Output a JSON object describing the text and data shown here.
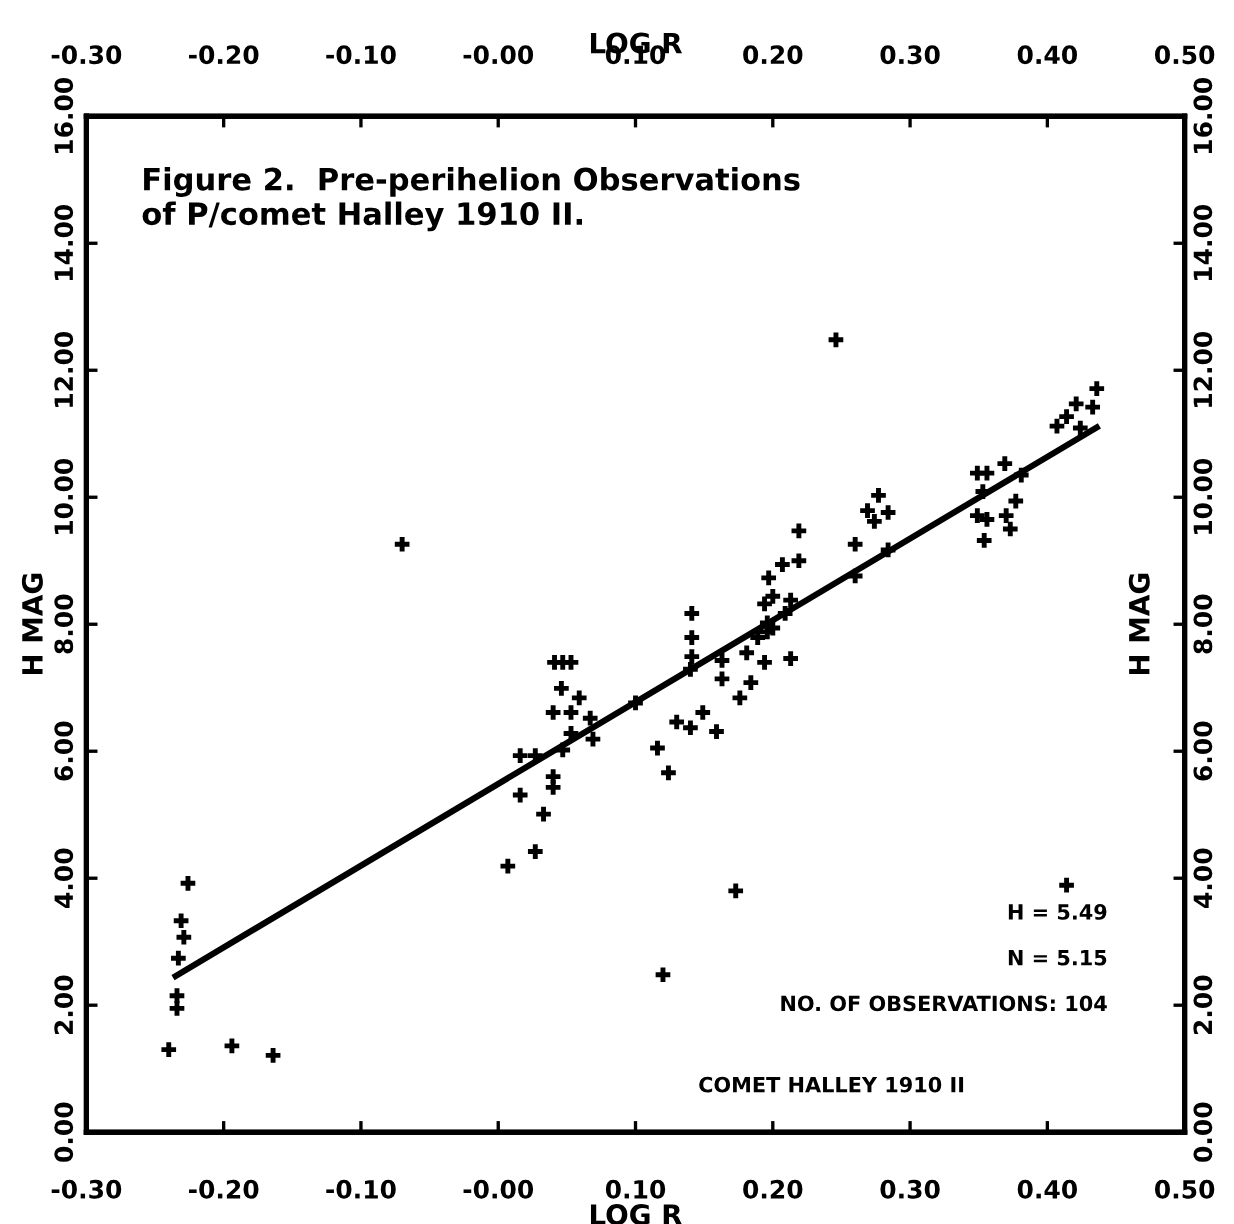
{
  "chart_data": {
    "type": "scatter",
    "title": "Figure 2.  Pre-perihelion Observations\nof P/comet Halley 1910 II.",
    "xlabel": "LOG R",
    "x2label": "LOG R",
    "ylabel": "H MAG",
    "y2label": "H MAG",
    "xlim": [
      -0.3,
      0.5
    ],
    "x2lim": [
      -0.3,
      0.5
    ],
    "xticks": [
      {
        "value": -0.3,
        "label": "-0.30"
      },
      {
        "value": -0.2,
        "label": "-0.20"
      },
      {
        "value": -0.1,
        "label": "-0.10"
      },
      {
        "value": 0,
        "label": "-0.00"
      },
      {
        "value": 0.1,
        "label": "0.10"
      },
      {
        "value": 0.2,
        "label": "0.20"
      },
      {
        "value": 0.3,
        "label": "0.30"
      },
      {
        "value": 0.4,
        "label": "0.40"
      },
      {
        "value": 0.5,
        "label": "0.50"
      }
    ],
    "x2ticks": [
      {
        "value": -0.3,
        "label": "-0.30"
      },
      {
        "value": -0.2,
        "label": "-0.20"
      },
      {
        "value": -0.1,
        "label": "-0.10"
      },
      {
        "value": 0,
        "label": "-0.00"
      },
      {
        "value": 0.1,
        "label": "0.10"
      },
      {
        "value": 0.2,
        "label": "0.20"
      },
      {
        "value": 0.3,
        "label": "0.30"
      },
      {
        "value": 0.4,
        "label": "0.40"
      },
      {
        "value": 0.5,
        "label": "0.50"
      }
    ],
    "ylim": [
      0,
      16
    ],
    "y2lim": [
      0,
      16
    ],
    "yticks": [
      {
        "value": 0,
        "label": "0.00"
      },
      {
        "value": 2,
        "label": "2.00"
      },
      {
        "value": 4,
        "label": "4.00"
      },
      {
        "value": 6,
        "label": "6.00"
      },
      {
        "value": 8,
        "label": "8.00"
      },
      {
        "value": 10,
        "label": "10.00"
      },
      {
        "value": 12,
        "label": "12.00"
      },
      {
        "value": 14,
        "label": "14.00"
      },
      {
        "value": 16,
        "label": "16.00"
      }
    ],
    "y2ticks": [
      {
        "value": 0,
        "label": "0.00"
      },
      {
        "value": 2,
        "label": "2.00"
      },
      {
        "value": 4,
        "label": "4.00"
      },
      {
        "value": 6,
        "label": "6.00"
      },
      {
        "value": 8,
        "label": "8.00"
      },
      {
        "value": 10,
        "label": "10.00"
      },
      {
        "value": 12,
        "label": "12.00"
      },
      {
        "value": 14,
        "label": "14.00"
      },
      {
        "value": 16,
        "label": "16.00"
      }
    ],
    "grid": false,
    "legend": false,
    "annotations": [
      "H = 5.49",
      "N = 5.15",
      "NO. OF OBSERVATIONS: 104",
      "COMET HALLEY 1910 II"
    ],
    "series": [
      {
        "type": "scatter",
        "color": "#000000",
        "marker": "cross",
        "x": [
          -0.226,
          -0.231,
          -0.229,
          -0.233,
          -0.234,
          -0.234,
          0.007,
          0.027,
          0.033,
          0.04,
          0.04,
          0.016,
          0.016,
          0.027,
          0.04,
          0.046,
          0.041,
          0.047,
          0.053,
          0.059,
          0.053,
          0.047,
          0.053,
          0.069,
          0.067,
          0.1,
          0.116,
          0.124,
          0.13,
          0.141,
          0.141,
          0.141,
          0.14,
          0.163,
          0.163,
          0.181,
          0.184,
          0.176,
          0.194,
          0.213,
          0.149,
          0.14,
          0.159,
          0.189,
          0.196,
          0.2,
          0.196,
          0.209,
          0.194,
          0.2,
          0.197,
          0.207,
          0.219,
          0.219,
          0.213,
          0.26,
          0.26,
          0.269,
          0.277,
          0.274,
          0.284,
          0.284,
          0.246,
          0.349,
          0.356,
          0.369,
          0.353,
          0.349,
          0.356,
          0.354,
          0.37,
          0.377,
          0.381,
          0.373,
          0.407,
          0.414,
          0.421,
          0.433,
          0.436,
          0.424,
          0.414,
          -0.07,
          -0.24,
          -0.194,
          -0.164,
          0.12,
          0.173
        ],
        "values": [
          3.92,
          3.33,
          3.07,
          2.74,
          2.15,
          1.95,
          4.19,
          4.42,
          5.01,
          5.43,
          5.6,
          5.31,
          5.93,
          5.93,
          6.61,
          6.99,
          7.4,
          7.4,
          7.4,
          6.84,
          6.61,
          6.02,
          6.28,
          6.19,
          6.52,
          6.76,
          6.05,
          5.66,
          6.46,
          8.17,
          7.79,
          7.49,
          7.29,
          7.43,
          7.14,
          7.55,
          7.08,
          6.84,
          7.4,
          7.46,
          6.61,
          6.37,
          6.31,
          7.79,
          7.88,
          7.94,
          8.02,
          8.17,
          8.32,
          8.44,
          8.73,
          8.94,
          9.0,
          9.47,
          8.38,
          9.26,
          8.76,
          9.79,
          10.03,
          9.62,
          9.76,
          9.17,
          12.48,
          10.38,
          10.38,
          10.53,
          10.09,
          9.71,
          9.65,
          9.32,
          9.71,
          9.94,
          10.35,
          9.5,
          11.12,
          11.27,
          11.47,
          11.42,
          11.71,
          11.09,
          3.89,
          9.26,
          1.3,
          1.36,
          1.21,
          2.48,
          3.8
        ]
      },
      {
        "type": "line",
        "color": "#000000",
        "line_style": "solid",
        "x": [
          -0.235,
          0.436
        ],
        "values": [
          2.46,
          11.1
        ]
      }
    ]
  }
}
